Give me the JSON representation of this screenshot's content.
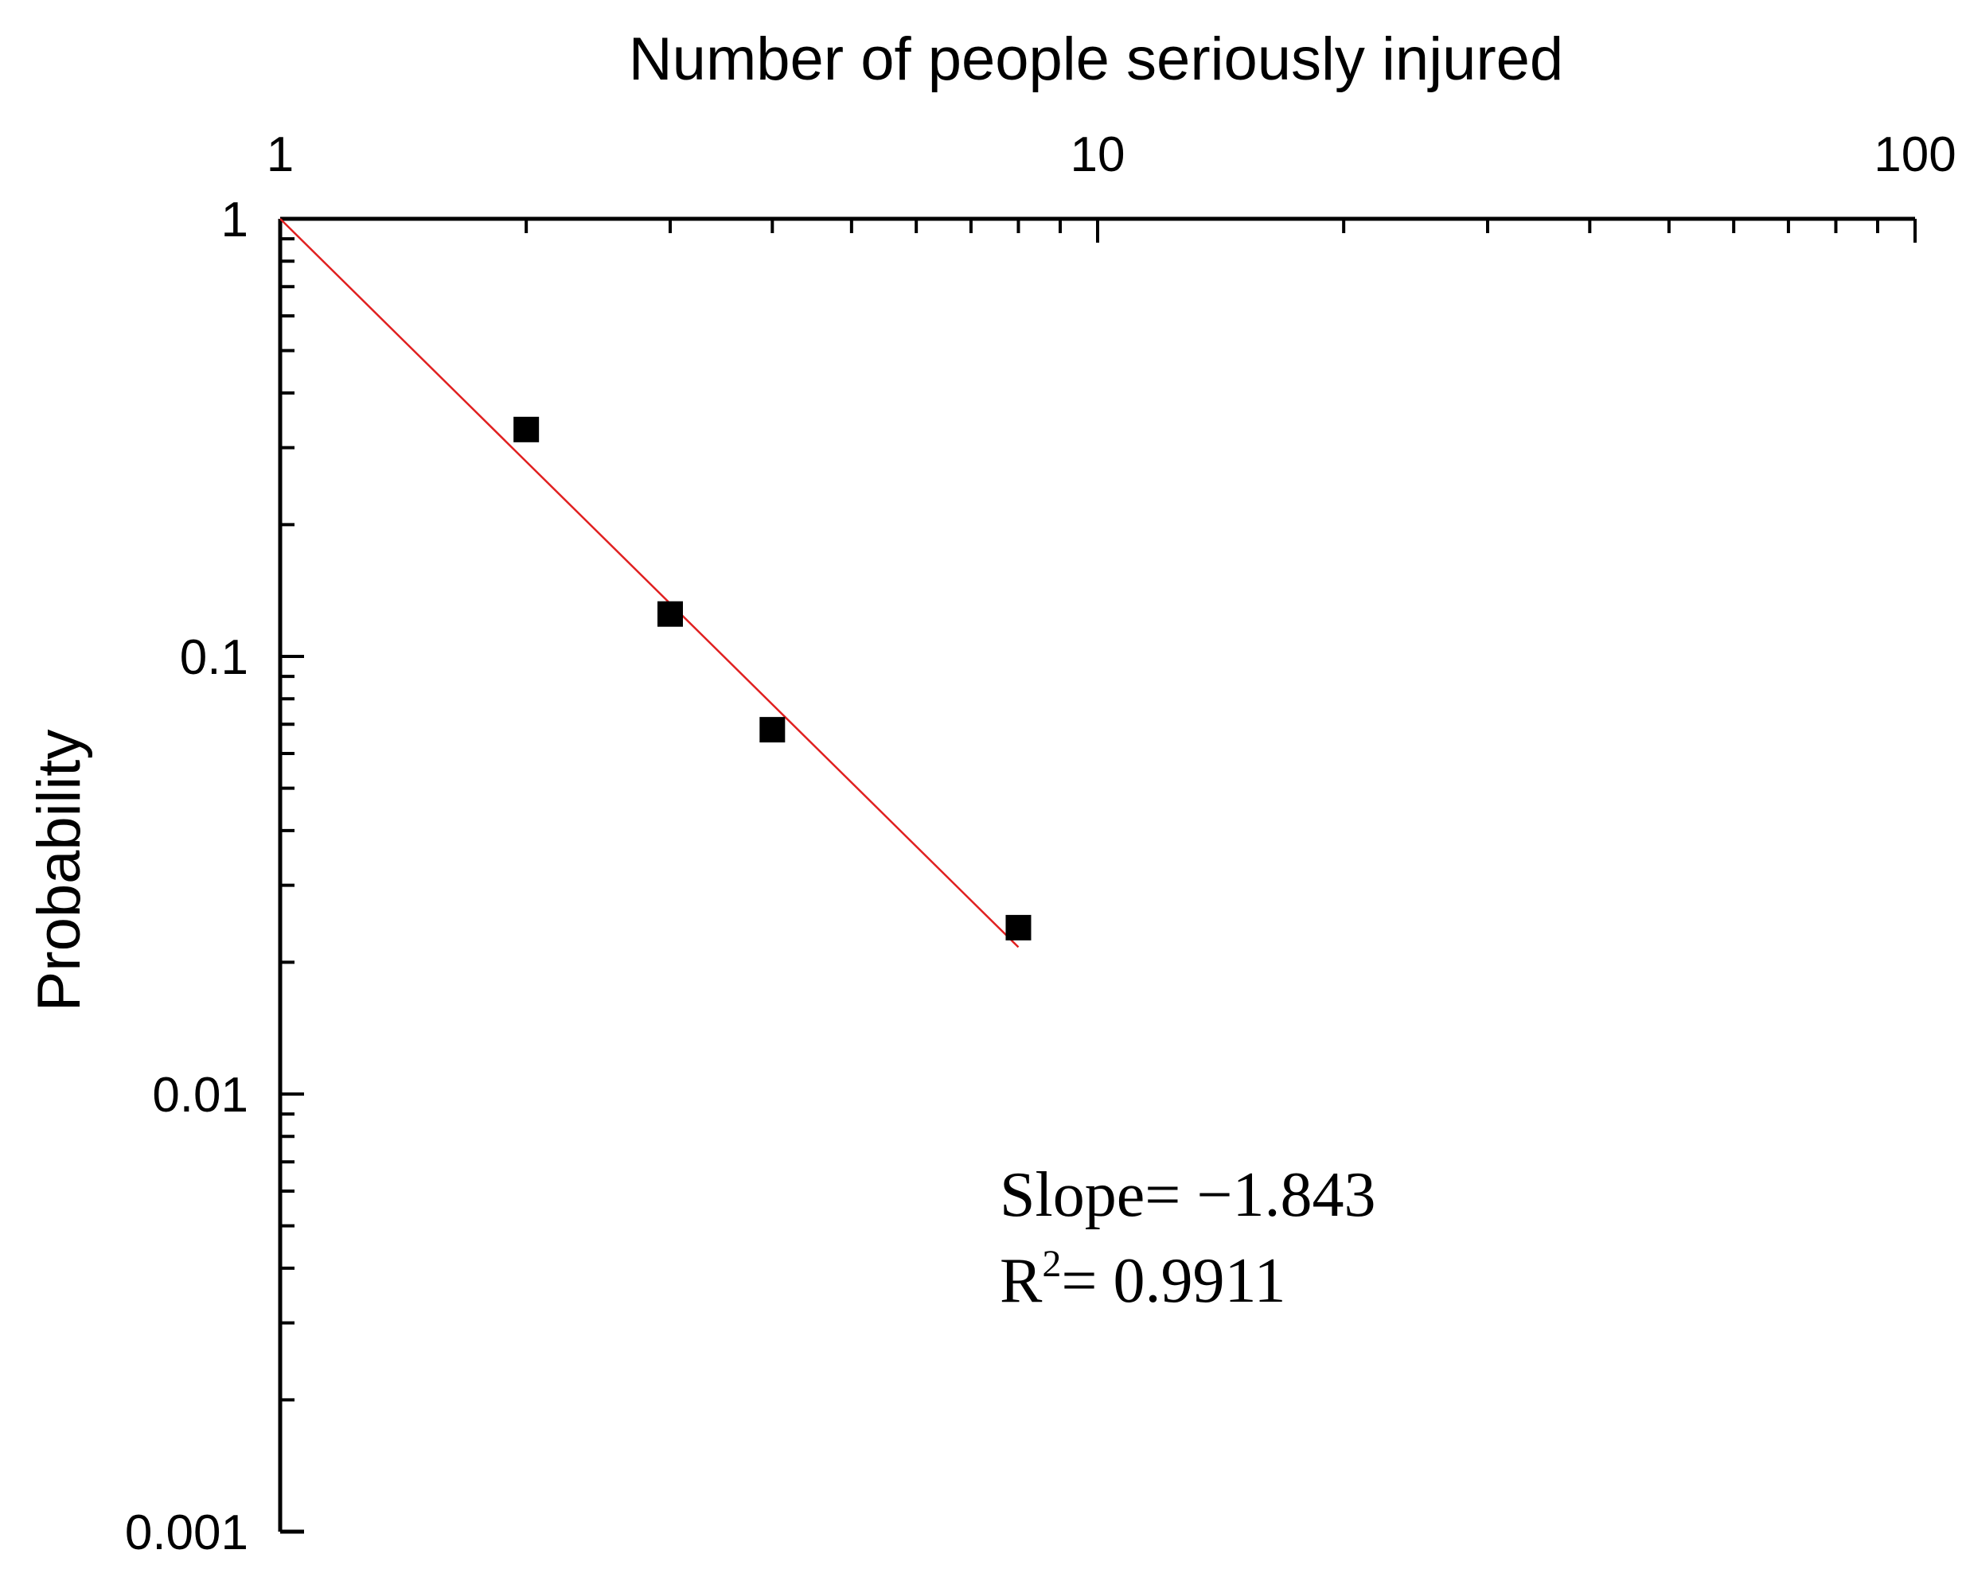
{
  "chart_data": {
    "type": "scatter",
    "title": "",
    "xlabel": "Number of people seriously injured",
    "ylabel": "Probability",
    "x_scale": "log",
    "y_scale": "log",
    "xlim": [
      1,
      100
    ],
    "ylim": [
      0.001,
      1
    ],
    "x_axis_position": "top",
    "grid": false,
    "x_ticks": [
      "1",
      "10",
      "100"
    ],
    "y_ticks": [
      "1",
      "0.1",
      "0.01",
      "0.001"
    ],
    "series": [
      {
        "marker": "square",
        "color": "#000000",
        "points": [
          {
            "x": 2,
            "y": 0.33
          },
          {
            "x": 3,
            "y": 0.125
          },
          {
            "x": 4,
            "y": 0.068
          },
          {
            "x": 8,
            "y": 0.024
          }
        ]
      }
    ],
    "fit_line": {
      "color": "#e02020",
      "x_start": 1,
      "x_end": 8,
      "slope": -1.843,
      "intercept_y": 1
    },
    "annotations": {
      "slope_label": "Slope= −1.843",
      "r2_prefix": "R",
      "r2_sup": "2",
      "r2_value": "= 0.9911"
    }
  }
}
